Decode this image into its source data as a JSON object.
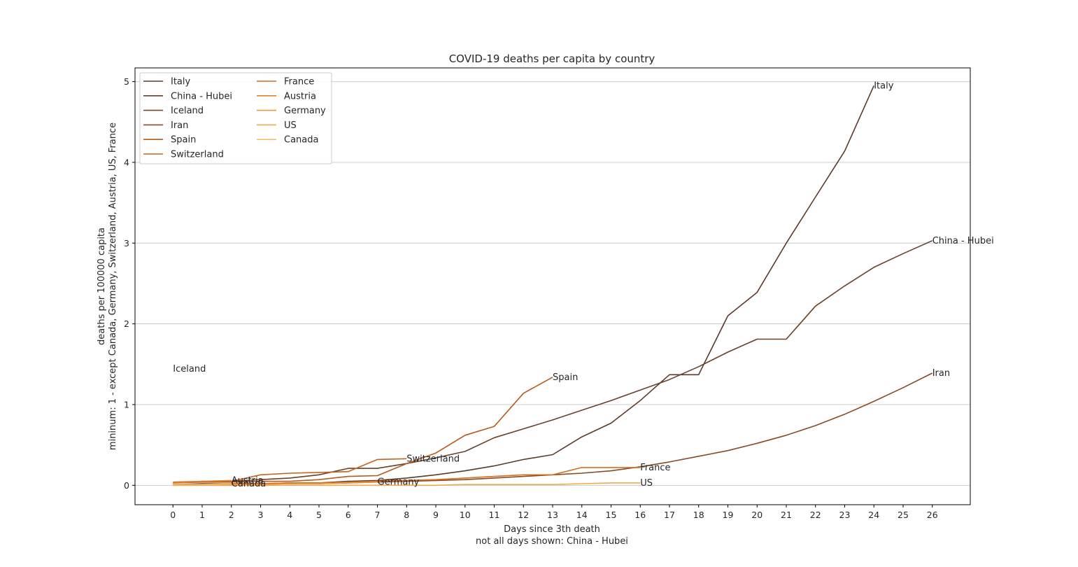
{
  "chart_data": {
    "type": "line",
    "title": "COVID-19 deaths per capita by country",
    "xlabel": "Days since 3th death",
    "xlabel_note": "not all days shown: China - Hubei",
    "ylabel_line1": "deaths per 100000 capita",
    "ylabel_line2": "mininum: 1 - except Canada, Germany, Switzerland, Austria, US, France",
    "x_ticks": [
      "0",
      "1",
      "2",
      "3",
      "4",
      "5",
      "6",
      "7",
      "8",
      "9",
      "10",
      "11",
      "12",
      "13",
      "14",
      "15",
      "16",
      "17",
      "18",
      "19",
      "20",
      "21",
      "22",
      "23",
      "24",
      "25",
      "26"
    ],
    "y_ticks": [
      "0",
      "1",
      "2",
      "3",
      "4",
      "5"
    ],
    "xlim": [
      -1.3,
      27.3
    ],
    "ylim": [
      -0.24,
      5.17
    ],
    "grid": "horizontal",
    "legend_position": "top-left",
    "legend_columns": 2,
    "series": [
      {
        "name": "Italy",
        "color": "#5b3a29",
        "x": [
          0,
          1,
          2,
          3,
          4,
          5,
          6,
          7,
          8,
          9,
          10,
          11,
          12,
          13,
          14,
          15,
          16,
          17,
          18,
          19,
          20,
          21,
          22,
          23,
          24
        ],
        "y": [
          0.01,
          0.02,
          0.02,
          0.02,
          0.03,
          0.03,
          0.05,
          0.06,
          0.09,
          0.13,
          0.18,
          0.24,
          0.32,
          0.38,
          0.6,
          0.77,
          1.05,
          1.37,
          1.37,
          2.1,
          2.39,
          3.0,
          3.57,
          4.14,
          4.95
        ],
        "end_label": "Italy"
      },
      {
        "name": "China - Hubei",
        "color": "#6a4129",
        "x": [
          2,
          3,
          4,
          5,
          6,
          7,
          8,
          9,
          10,
          11,
          12,
          13,
          14,
          15,
          16,
          17,
          18,
          19,
          20,
          21,
          22,
          23,
          24,
          25,
          26
        ],
        "y": [
          0.05,
          0.07,
          0.09,
          0.13,
          0.21,
          0.21,
          0.27,
          0.34,
          0.42,
          0.59,
          0.7,
          0.81,
          0.93,
          1.05,
          1.18,
          1.31,
          1.47,
          1.65,
          1.81,
          1.81,
          2.22,
          2.47,
          2.7,
          2.87,
          3.03
        ],
        "end_label": "China - Hubei"
      },
      {
        "name": "Iceland",
        "color": "#7a4527",
        "x": [
          0
        ],
        "y": [
          1.44
        ],
        "end_label": "Iceland"
      },
      {
        "name": "Iran",
        "color": "#8a4a22",
        "x": [
          0,
          1,
          2,
          3,
          4,
          5,
          6,
          7,
          8,
          9,
          10,
          11,
          12,
          13,
          14,
          15,
          16,
          17,
          18,
          19,
          20,
          21,
          22,
          23,
          24,
          25,
          26
        ],
        "y": [
          0.01,
          0.01,
          0.02,
          0.02,
          0.02,
          0.02,
          0.03,
          0.04,
          0.05,
          0.06,
          0.07,
          0.09,
          0.11,
          0.13,
          0.15,
          0.18,
          0.23,
          0.29,
          0.36,
          0.43,
          0.52,
          0.62,
          0.74,
          0.88,
          1.04,
          1.21,
          1.39
        ],
        "end_label": "Iran"
      },
      {
        "name": "Spain",
        "color": "#b55a1c",
        "x": [
          0,
          1,
          2,
          3,
          4,
          5,
          6,
          7,
          8,
          9,
          10,
          11,
          12,
          13
        ],
        "y": [
          0.03,
          0.04,
          0.04,
          0.05,
          0.05,
          0.07,
          0.11,
          0.12,
          0.27,
          0.4,
          0.62,
          0.73,
          1.14,
          1.34
        ],
        "end_label": "Spain"
      },
      {
        "name": "Switzerland",
        "color": "#c7631c",
        "x": [
          0,
          1,
          2,
          3,
          4,
          5,
          6,
          7,
          8
        ],
        "y": [
          0.04,
          0.05,
          0.05,
          0.13,
          0.15,
          0.16,
          0.17,
          0.32,
          0.33
        ],
        "end_label": "Switzerland"
      },
      {
        "name": "France",
        "color": "#d46e22",
        "x": [
          0,
          1,
          2,
          3,
          4,
          5,
          6,
          7,
          8,
          9,
          10,
          11,
          12,
          13,
          14,
          15,
          16
        ],
        "y": [
          0.01,
          0.01,
          0.02,
          0.02,
          0.03,
          0.03,
          0.04,
          0.05,
          0.06,
          0.07,
          0.09,
          0.11,
          0.13,
          0.13,
          0.22,
          0.22,
          0.22
        ],
        "end_label": "France"
      },
      {
        "name": "Austria",
        "color": "#e07f30",
        "x": [
          0,
          1,
          2
        ],
        "y": [
          0.03,
          0.05,
          0.06
        ],
        "end_label": "Austria"
      },
      {
        "name": "Germany",
        "color": "#e99840",
        "x": [
          0,
          1,
          2,
          3,
          4,
          5,
          6,
          7
        ],
        "y": [
          0.0,
          0.0,
          0.01,
          0.01,
          0.02,
          0.02,
          0.03,
          0.04
        ],
        "end_label": "Germany"
      },
      {
        "name": "US",
        "color": "#eeaa50",
        "x": [
          0,
          1,
          2,
          3,
          4,
          5,
          6,
          7,
          8,
          9,
          10,
          11,
          12,
          13,
          14,
          15,
          16
        ],
        "y": [
          0.0,
          0.0,
          0.0,
          0.0,
          0.0,
          0.0,
          0.0,
          0.0,
          0.0,
          0.0,
          0.01,
          0.01,
          0.01,
          0.01,
          0.02,
          0.03,
          0.03
        ],
        "end_label": "US"
      },
      {
        "name": "Canada",
        "color": "#f2bd6a",
        "x": [
          0,
          1,
          2
        ],
        "y": [
          0.01,
          0.01,
          0.02
        ],
        "end_label": "Canada"
      }
    ]
  }
}
